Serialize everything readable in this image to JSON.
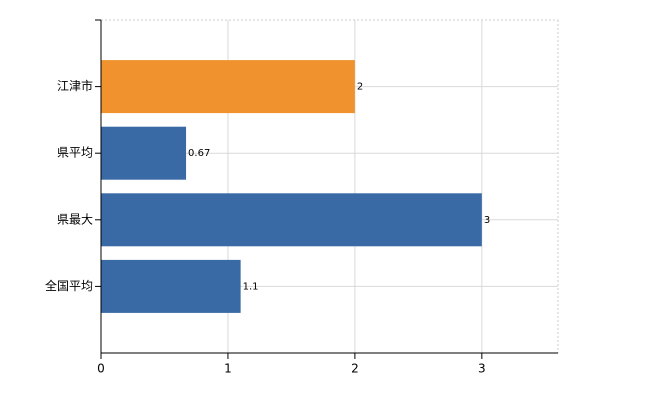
{
  "chart_data": {
    "type": "bar",
    "orientation": "horizontal",
    "categories": [
      "江津市",
      "県平均",
      "県最大",
      "全国平均"
    ],
    "values": [
      2,
      0.67,
      3,
      1.1
    ],
    "colors": [
      "#f0922e",
      "#3a6aa5",
      "#3a6aa5",
      "#3a6aa5"
    ],
    "xlim": [
      0,
      3.6
    ],
    "xticks": [
      0,
      1,
      2,
      3
    ],
    "grid": true
  }
}
